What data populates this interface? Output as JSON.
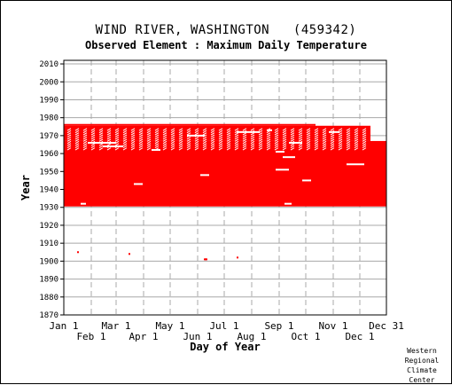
{
  "chart_data": {
    "type": "scatter",
    "title": "WIND RIVER, WASHINGTON   (459342)",
    "subtitle": "Observed Element : Maximum Daily Temperature",
    "xlabel": "Day of Year",
    "ylabel": "Year",
    "xlim": [
      1,
      365
    ],
    "ylim": [
      1870,
      2012
    ],
    "y_ticks": [
      1870,
      1880,
      1890,
      1900,
      1910,
      1920,
      1930,
      1940,
      1950,
      1960,
      1970,
      1980,
      1990,
      2000,
      2010
    ],
    "x_ticks_top_row": [
      {
        "label": "Jan 1",
        "day": 1
      },
      {
        "label": "Mar 1",
        "day": 60
      },
      {
        "label": "May 1",
        "day": 121
      },
      {
        "label": "Jul 1",
        "day": 182
      },
      {
        "label": "Sep 1",
        "day": 244
      },
      {
        "label": "Nov 1",
        "day": 305
      },
      {
        "label": "Dec 31",
        "day": 365
      }
    ],
    "x_ticks_bottom_row": [
      {
        "label": "Feb 1",
        "day": 32
      },
      {
        "label": "Apr 1",
        "day": 91
      },
      {
        "label": "Jun 1",
        "day": 152
      },
      {
        "label": "Aug 1",
        "day": 213
      },
      {
        "label": "Oct 1",
        "day": 274
      },
      {
        "label": "Dec 1",
        "day": 335
      }
    ],
    "series": [
      {
        "color": "#ff0000",
        "coverage_blocks": [
          {
            "day_start": 1,
            "day_end": 365,
            "year_start": 1930.5,
            "year_end": 1967
          },
          {
            "day_start": 1,
            "day_end": 347,
            "year_start": 1967,
            "year_end": 1975.5
          },
          {
            "day_start": 1,
            "day_end": 285,
            "year_start": 1975.5,
            "year_end": 1976.5
          }
        ],
        "missing_marks": [
          {
            "day_start": 28,
            "day_end": 60,
            "year": 1966
          },
          {
            "day_start": 45,
            "day_end": 68,
            "year": 1964
          },
          {
            "day_start": 100,
            "day_end": 110,
            "year": 1962
          },
          {
            "day_start": 140,
            "day_end": 160,
            "year": 1970
          },
          {
            "day_start": 196,
            "day_end": 222,
            "year": 1972
          },
          {
            "day_start": 230,
            "day_end": 236,
            "year": 1973
          },
          {
            "day_start": 240,
            "day_end": 250,
            "year": 1961
          },
          {
            "day_start": 248,
            "day_end": 262,
            "year": 1958
          },
          {
            "day_start": 255,
            "day_end": 270,
            "year": 1966
          },
          {
            "day_start": 300,
            "day_end": 312,
            "year": 1972
          },
          {
            "day_start": 320,
            "day_end": 340,
            "year": 1954
          },
          {
            "day_start": 240,
            "day_end": 255,
            "year": 1951
          },
          {
            "day_start": 155,
            "day_end": 165,
            "year": 1948
          },
          {
            "day_start": 270,
            "day_end": 280,
            "year": 1945
          },
          {
            "day_start": 80,
            "day_end": 90,
            "year": 1943
          },
          {
            "day_start": 20,
            "day_end": 26,
            "year": 1932
          },
          {
            "day_start": 250,
            "day_end": 258,
            "year": 1932
          }
        ],
        "isolated_points": [
          {
            "day": 17,
            "year": 1905
          },
          {
            "day": 75,
            "year": 1904
          },
          {
            "day": 160,
            "year": 1901
          },
          {
            "day": 161,
            "year": 1901
          },
          {
            "day": 162,
            "year": 1901
          },
          {
            "day": 197,
            "year": 1902
          }
        ]
      }
    ],
    "grid": true
  },
  "credit": [
    "Western",
    "Regional",
    "Climate",
    "Center"
  ]
}
